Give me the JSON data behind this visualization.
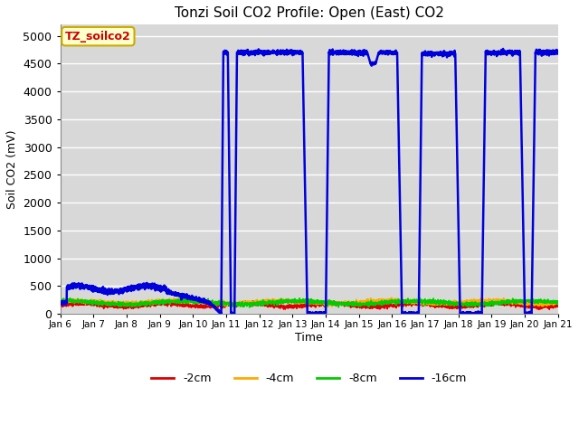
{
  "title": "Tonzi Soil CO2 Profile: Open (East) CO2",
  "ylabel": "Soil CO2 (mV)",
  "xlabel": "Time",
  "xlim_days": [
    0,
    15
  ],
  "ylim": [
    0,
    5200
  ],
  "yticks": [
    0,
    500,
    1000,
    1500,
    2000,
    2500,
    3000,
    3500,
    4000,
    4500,
    5000
  ],
  "bg_color": "#d8d8d8",
  "fig_bg": "#ffffff",
  "grid_color": "#ffffff",
  "legend_label": "TZ_soilco2",
  "legend_bg": "#ffffcc",
  "legend_border": "#ccaa00",
  "series": {
    "-2cm": {
      "color": "#dd0000",
      "lw": 1.2
    },
    "-4cm": {
      "color": "#ffaa00",
      "lw": 1.2
    },
    "-8cm": {
      "color": "#00cc00",
      "lw": 1.2
    },
    "-16cm": {
      "color": "#0000dd",
      "lw": 1.8
    }
  },
  "xtick_labels": [
    "Jan 6",
    "Jan 7",
    "Jan 8",
    "Jan 9",
    "Jan 10",
    "Jan 11",
    "Jan 12",
    "Jan 13",
    "Jan 14",
    "Jan 15",
    "Jan 16",
    "Jan 17",
    "Jan 18",
    "Jan 19",
    "Jan 20",
    "Jan 21"
  ],
  "xtick_positions": [
    0,
    1,
    2,
    3,
    4,
    5,
    6,
    7,
    8,
    9,
    10,
    11,
    12,
    13,
    14,
    15
  ]
}
